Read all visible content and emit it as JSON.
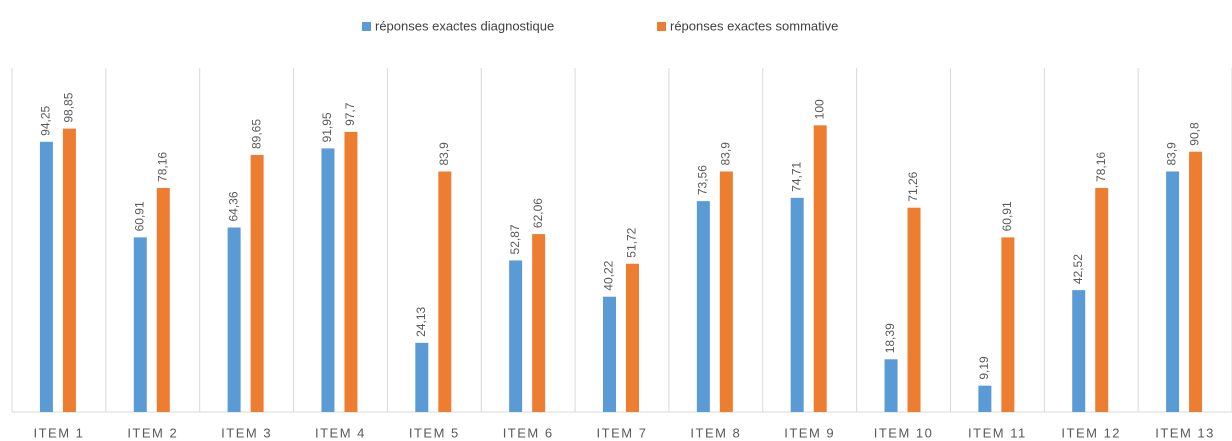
{
  "chart_data": {
    "type": "bar",
    "categories": [
      "ITEM 1",
      "ITEM 2",
      "ITEM 3",
      "ITEM 4",
      "ITEM 5",
      "ITEM 6",
      "ITEM 7",
      "ITEM 8",
      "ITEM 9",
      "ITEM 10",
      "ITEM 11",
      "ITEM 12",
      "ITEM 13"
    ],
    "series": [
      {
        "name": "réponses exactes diagnostique",
        "color": "#5b9bd5",
        "values": [
          94.25,
          60.91,
          64.36,
          91.95,
          24.13,
          52.87,
          40.22,
          73.56,
          74.71,
          18.39,
          9.19,
          42.52,
          83.9
        ],
        "value_labels": [
          "94,25",
          "60,91",
          "64,36",
          "91,95",
          "24,13",
          "52,87",
          "40,22",
          "73,56",
          "74,71",
          "18,39",
          "9,19",
          "42,52",
          "83,9"
        ]
      },
      {
        "name": "réponses exactes sommative",
        "color": "#ed7d31",
        "values": [
          98.85,
          78.16,
          89.65,
          97.7,
          83.9,
          62.06,
          51.72,
          83.9,
          100,
          71.26,
          60.91,
          78.16,
          90.8
        ],
        "value_labels": [
          "98,85",
          "78,16",
          "89,65",
          "97,7",
          "83,9",
          "62,06",
          "51,72",
          "83,9",
          "100",
          "71,26",
          "60,91",
          "78,16",
          "90,8"
        ]
      }
    ],
    "ylim": [
      0,
      120
    ],
    "legend": "top"
  }
}
